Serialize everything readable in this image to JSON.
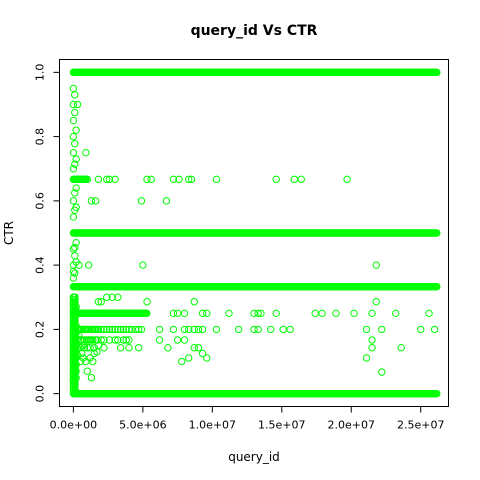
{
  "chart_data": {
    "type": "scatter",
    "title": "query_id Vs CTR",
    "xlabel": "query_id",
    "ylabel": "CTR",
    "xlim": [
      -1000000,
      27000000
    ],
    "ylim": [
      -0.04,
      1.04
    ],
    "xticks": [
      0,
      5000000,
      10000000,
      15000000,
      20000000,
      25000000
    ],
    "xtick_labels": [
      "0.0e+00",
      "5.0e+06",
      "1.0e+07",
      "1.5e+07",
      "2.0e+07",
      "2.5e+07"
    ],
    "yticks": [
      0,
      0.2,
      0.4,
      0.6,
      0.8,
      1.0
    ],
    "ytick_labels": [
      "0.0",
      "0.2",
      "0.4",
      "0.6",
      "0.8",
      "1.0"
    ],
    "point_color": "#00ff00",
    "marker": "open-circle",
    "grid": false,
    "dense_rows": [
      {
        "y": 0.0,
        "x_from": 0,
        "x_to": 26200000
      },
      {
        "y": 1.0,
        "x_from": 0,
        "x_to": 26200000
      },
      {
        "y": 0.5,
        "x_from": 0,
        "x_to": 26200000
      },
      {
        "y": 0.333,
        "x_from": 0,
        "x_to": 26200000
      },
      {
        "y": 0.25,
        "x_from": 0,
        "x_to": 5300000
      },
      {
        "y": 0.667,
        "x_from": 0,
        "x_to": 900000
      }
    ],
    "points": [
      [
        0,
        0.95
      ],
      [
        0,
        0.9
      ],
      [
        0,
        0.85
      ],
      [
        0,
        0.8
      ],
      [
        0,
        0.75
      ],
      [
        0,
        0.7
      ],
      [
        0,
        0.6
      ],
      [
        0,
        0.55
      ],
      [
        0,
        0.45
      ],
      [
        0,
        0.4
      ],
      [
        0,
        0.38
      ],
      [
        0,
        0.36
      ],
      [
        0,
        0.3
      ],
      [
        0,
        0.28
      ],
      [
        0,
        0.22
      ],
      [
        0,
        0.2
      ],
      [
        0,
        0.18
      ],
      [
        0,
        0.16
      ],
      [
        0,
        0.14
      ],
      [
        0,
        0.12
      ],
      [
        0,
        0.1
      ],
      [
        0,
        0.08
      ],
      [
        0,
        0.06
      ],
      [
        0,
        0.04
      ],
      [
        100000,
        0.93
      ],
      [
        100000,
        0.875
      ],
      [
        100000,
        0.778
      ],
      [
        100000,
        0.714
      ],
      [
        100000,
        0.625
      ],
      [
        100000,
        0.571
      ],
      [
        100000,
        0.455
      ],
      [
        100000,
        0.429
      ],
      [
        100000,
        0.375
      ],
      [
        100000,
        0.3
      ],
      [
        100000,
        0.286
      ],
      [
        100000,
        0.222
      ],
      [
        100000,
        0.182
      ],
      [
        100000,
        0.167
      ],
      [
        100000,
        0.143
      ],
      [
        100000,
        0.125
      ],
      [
        100000,
        0.111
      ],
      [
        100000,
        0.091
      ],
      [
        100000,
        0.077
      ],
      [
        100000,
        0.067
      ],
      [
        200000,
        0.82
      ],
      [
        200000,
        0.73
      ],
      [
        200000,
        0.64
      ],
      [
        200000,
        0.58
      ],
      [
        200000,
        0.47
      ],
      [
        200000,
        0.41
      ],
      [
        200000,
        0.27
      ],
      [
        200000,
        0.21
      ],
      [
        200000,
        0.19
      ],
      [
        200000,
        0.15
      ],
      [
        200000,
        0.13
      ],
      [
        200000,
        0.11
      ],
      [
        200000,
        0.09
      ],
      [
        200000,
        0.07
      ],
      [
        200000,
        0.05
      ],
      [
        300000,
        0.9
      ],
      [
        300000,
        0.2
      ],
      [
        300000,
        0.17
      ],
      [
        300000,
        0.14
      ],
      [
        300000,
        0.12
      ],
      [
        400000,
        0.4
      ],
      [
        400000,
        0.2
      ],
      [
        400000,
        0.18
      ],
      [
        400000,
        0.15
      ],
      [
        500000,
        0.2
      ],
      [
        500000,
        0.167
      ],
      [
        500000,
        0.143
      ],
      [
        500000,
        0.1
      ],
      [
        600000,
        0.2
      ],
      [
        600000,
        0.167
      ],
      [
        600000,
        0.125
      ],
      [
        700000,
        0.2
      ],
      [
        700000,
        0.15
      ],
      [
        700000,
        0.111
      ],
      [
        800000,
        0.2
      ],
      [
        800000,
        0.167
      ],
      [
        800000,
        0.143
      ],
      [
        900000,
        0.75
      ],
      [
        900000,
        0.2
      ],
      [
        900000,
        0.1
      ],
      [
        1000000,
        0.667
      ],
      [
        1000000,
        0.2
      ],
      [
        1000000,
        0.167
      ],
      [
        1000000,
        0.143
      ],
      [
        1000000,
        0.07
      ],
      [
        1100000,
        0.4
      ],
      [
        1100000,
        0.2
      ],
      [
        1100000,
        0.167
      ],
      [
        1200000,
        0.167
      ],
      [
        1200000,
        0.143
      ],
      [
        1200000,
        0.111
      ],
      [
        1300000,
        0.6
      ],
      [
        1300000,
        0.2
      ],
      [
        1300000,
        0.167
      ],
      [
        1300000,
        0.05
      ],
      [
        1400000,
        0.2
      ],
      [
        1400000,
        0.167
      ],
      [
        1400000,
        0.1
      ],
      [
        1500000,
        0.2
      ],
      [
        1500000,
        0.143
      ],
      [
        1500000,
        0.125
      ],
      [
        1600000,
        0.6
      ],
      [
        1600000,
        0.2
      ],
      [
        1600000,
        0.167
      ],
      [
        1700000,
        0.2
      ],
      [
        1700000,
        0.167
      ],
      [
        1700000,
        0.13
      ],
      [
        1800000,
        0.667
      ],
      [
        1800000,
        0.286
      ],
      [
        1800000,
        0.2
      ],
      [
        1800000,
        0.15
      ],
      [
        2000000,
        0.286
      ],
      [
        2000000,
        0.2
      ],
      [
        2000000,
        0.167
      ],
      [
        2200000,
        0.2
      ],
      [
        2200000,
        0.167
      ],
      [
        2200000,
        0.143
      ],
      [
        2400000,
        0.667
      ],
      [
        2400000,
        0.3
      ],
      [
        2400000,
        0.2
      ],
      [
        2600000,
        0.667
      ],
      [
        2600000,
        0.2
      ],
      [
        2600000,
        0.167
      ],
      [
        2800000,
        0.3
      ],
      [
        2800000,
        0.2
      ],
      [
        3000000,
        0.667
      ],
      [
        3000000,
        0.2
      ],
      [
        3000000,
        0.167
      ],
      [
        3200000,
        0.3
      ],
      [
        3200000,
        0.2
      ],
      [
        3200000,
        0.167
      ],
      [
        3400000,
        0.2
      ],
      [
        3400000,
        0.143
      ],
      [
        3600000,
        0.333
      ],
      [
        3600000,
        0.2
      ],
      [
        3600000,
        0.167
      ],
      [
        3800000,
        0.2
      ],
      [
        3800000,
        0.167
      ],
      [
        4000000,
        0.2
      ],
      [
        4000000,
        0.167
      ],
      [
        4000000,
        0.143
      ],
      [
        4200000,
        0.2
      ],
      [
        4500000,
        0.25
      ],
      [
        4500000,
        0.2
      ],
      [
        4700000,
        0.2
      ],
      [
        4700000,
        0.143
      ],
      [
        4900000,
        0.6
      ],
      [
        4900000,
        0.2
      ],
      [
        5000000,
        0.4
      ],
      [
        5300000,
        0.667
      ],
      [
        5300000,
        0.286
      ],
      [
        5600000,
        0.667
      ],
      [
        6200000,
        0.2
      ],
      [
        6200000,
        0.167
      ],
      [
        6700000,
        0.6
      ],
      [
        6800000,
        0.143
      ],
      [
        7200000,
        0.667
      ],
      [
        7200000,
        0.25
      ],
      [
        7200000,
        0.2
      ],
      [
        7500000,
        0.25
      ],
      [
        7500000,
        0.167
      ],
      [
        7600000,
        0.667
      ],
      [
        7800000,
        0.1
      ],
      [
        8000000,
        0.25
      ],
      [
        8000000,
        0.2
      ],
      [
        8000000,
        0.167
      ],
      [
        8300000,
        0.667
      ],
      [
        8300000,
        0.2
      ],
      [
        8300000,
        0.111
      ],
      [
        8500000,
        0.667
      ],
      [
        8700000,
        0.286
      ],
      [
        8700000,
        0.2
      ],
      [
        8700000,
        0.143
      ],
      [
        9000000,
        0.2
      ],
      [
        9000000,
        0.143
      ],
      [
        9300000,
        0.25
      ],
      [
        9300000,
        0.2
      ],
      [
        9300000,
        0.125
      ],
      [
        9600000,
        0.25
      ],
      [
        9600000,
        0.111
      ],
      [
        10300000,
        0.667
      ],
      [
        10300000,
        0.2
      ],
      [
        11200000,
        0.25
      ],
      [
        11900000,
        0.2
      ],
      [
        13000000,
        0.25
      ],
      [
        13000000,
        0.2
      ],
      [
        13300000,
        0.25
      ],
      [
        13300000,
        0.2
      ],
      [
        13500000,
        0.25
      ],
      [
        14200000,
        0.2
      ],
      [
        14600000,
        0.667
      ],
      [
        14600000,
        0.25
      ],
      [
        15100000,
        0.2
      ],
      [
        15600000,
        0.2
      ],
      [
        15900000,
        0.667
      ],
      [
        16400000,
        0.667
      ],
      [
        17400000,
        0.25
      ],
      [
        17900000,
        0.25
      ],
      [
        18900000,
        0.25
      ],
      [
        19700000,
        0.667
      ],
      [
        20200000,
        0.25
      ],
      [
        21100000,
        0.2
      ],
      [
        21100000,
        0.111
      ],
      [
        21500000,
        0.25
      ],
      [
        21500000,
        0.167
      ],
      [
        21500000,
        0.143
      ],
      [
        21800000,
        0.4
      ],
      [
        21800000,
        0.286
      ],
      [
        22200000,
        0.2
      ],
      [
        22200000,
        0.067
      ],
      [
        23200000,
        0.25
      ],
      [
        23600000,
        0.143
      ],
      [
        25000000,
        0.2
      ],
      [
        25600000,
        0.25
      ],
      [
        26000000,
        0.2
      ]
    ]
  }
}
